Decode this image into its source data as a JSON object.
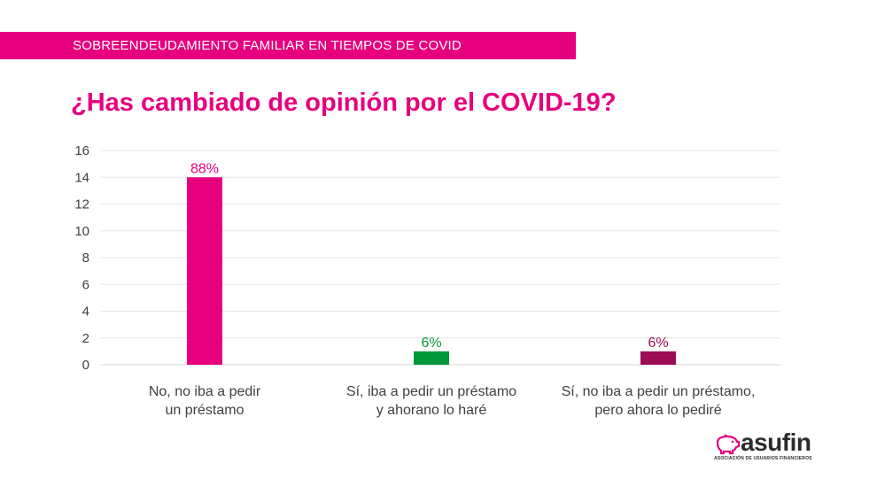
{
  "header": {
    "banner_text": "SOBREENDEUDAMIENTO FAMILIAR EN TIEMPOS DE COVID",
    "title": "¿Has cambiado de opinión por el COVID-19?"
  },
  "colors": {
    "brand": "#e6007e",
    "bar_1": "#e6007e",
    "bar_2": "#00983a",
    "bar_3": "#9b0d55",
    "text": "#404040",
    "grid": "#e6e6e6"
  },
  "chart_data": {
    "type": "bar",
    "title": "¿Has cambiado de opinión por el COVID-19?",
    "categories": [
      [
        "No, no iba a pedir",
        "un préstamo"
      ],
      [
        "Sí, iba a pedir un préstamo",
        "y ahorano lo haré"
      ],
      [
        "Sí, no iba a pedir un préstamo,",
        "pero ahora lo pediré"
      ]
    ],
    "values": [
      14,
      1,
      1
    ],
    "data_labels": [
      "88%",
      "6%",
      "6%"
    ],
    "yticks": [
      "0",
      "2",
      "4",
      "6",
      "8",
      "10",
      "12",
      "14",
      "16"
    ],
    "ylim": [
      0,
      16
    ],
    "grid": true,
    "xlabel": "",
    "ylabel": ""
  },
  "logo": {
    "name": "asufin",
    "subtitle": "ASOCIACIÓN DE USUARIOS FINANCIEROS"
  }
}
